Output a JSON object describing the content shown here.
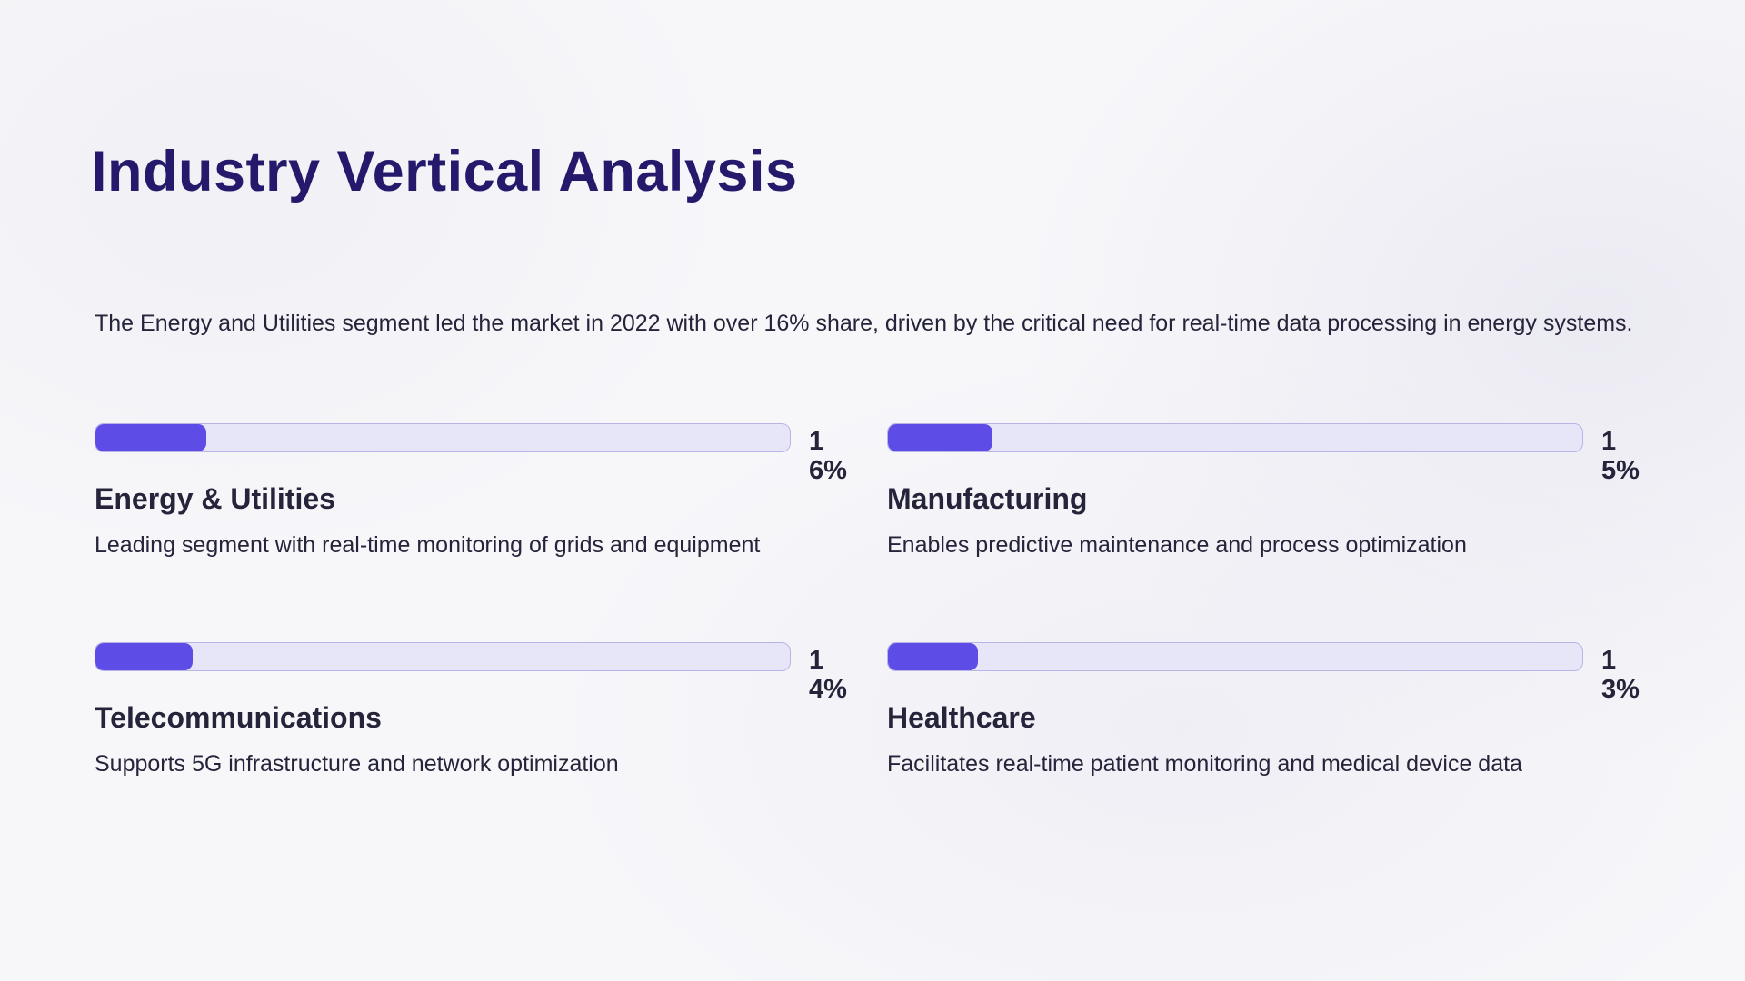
{
  "title": "Industry Vertical Analysis",
  "intro": "The Energy and Utilities segment led the market in 2022 with over 16% share, driven by the critical need for real-time data processing in energy systems.",
  "colors": {
    "title": "#25196b",
    "bar_fill": "#5d4ce6",
    "bar_track": "#e7e5f8",
    "bar_border": "#b9b4e6",
    "text": "#25243a"
  },
  "segments": [
    {
      "name": "Energy & Utilities",
      "value": 16,
      "label": "16%",
      "description": "Leading segment with real-time monitoring of grids and equipment"
    },
    {
      "name": "Manufacturing",
      "value": 15,
      "label": "15%",
      "description": "Enables predictive maintenance and process optimization"
    },
    {
      "name": "Telecommunications",
      "value": 14,
      "label": "14%",
      "description": "Supports 5G infrastructure and network optimization"
    },
    {
      "name": "Healthcare",
      "value": 13,
      "label": "13%",
      "description": "Facilitates real-time patient monitoring and medical device data"
    }
  ]
}
